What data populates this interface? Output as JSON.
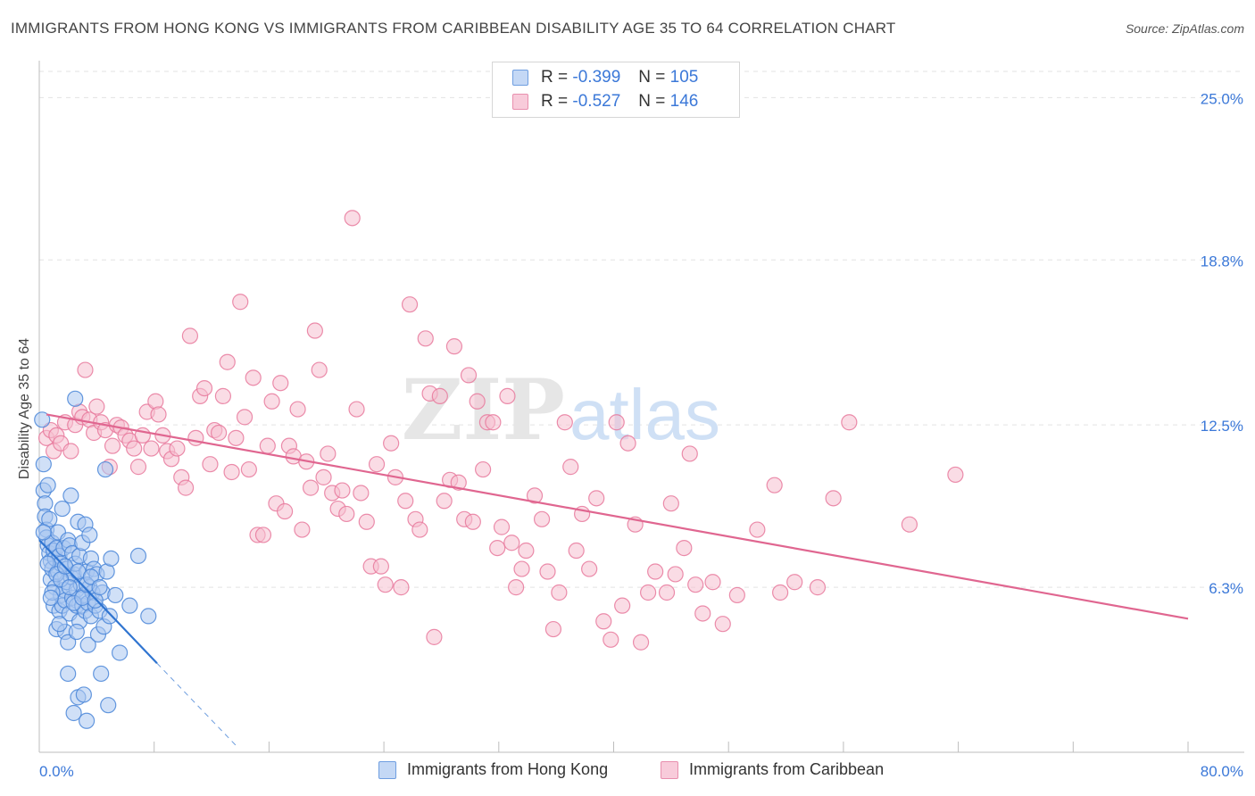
{
  "header": {
    "title": "IMMIGRANTS FROM HONG KONG VS IMMIGRANTS FROM CARIBBEAN DISABILITY AGE 35 TO 64 CORRELATION CHART",
    "source": "Source: ZipAtlas.com"
  },
  "legend": {
    "hk": {
      "r_label": "R =",
      "r_value": "-0.399",
      "n_label": "N =",
      "n_value": "105"
    },
    "car": {
      "r_label": "R =",
      "r_value": "-0.527",
      "n_label": "N =",
      "n_value": "146"
    }
  },
  "watermark": {
    "zip": "ZIP",
    "atlas": "atlas"
  },
  "colors": {
    "hk_fill": "#a9c7f1",
    "hk_stroke": "#4a86d8",
    "hk_line": "#2f74d0",
    "car_fill": "#f6bfd0",
    "car_stroke": "#e8799c",
    "car_line": "#e06690",
    "tick_text": "#3b78d8",
    "grid": "#e3e3e3"
  },
  "chart_data": {
    "type": "scatter",
    "title": "IMMIGRANTS FROM HONG KONG VS IMMIGRANTS FROM CARIBBEAN DISABILITY AGE 35 TO 64 CORRELATION CHART",
    "xlabel": "",
    "ylabel": "Disability Age 35 to 64",
    "xlim": [
      0,
      80
    ],
    "ylim": [
      0,
      26
    ],
    "x_tick_labels": [
      "0.0%",
      "80.0%"
    ],
    "y_ticks": [
      6.3,
      12.5,
      18.8,
      25.0
    ],
    "y_tick_labels": [
      "6.3%",
      "12.5%",
      "18.8%",
      "25.0%"
    ],
    "grid": true,
    "legend_placement": "top-center",
    "series": [
      {
        "name": "Immigrants from Hong Kong",
        "color": "#4a86d8",
        "trend": {
          "x": [
            0.0,
            8.2
          ],
          "y": [
            8.1,
            3.4
          ],
          "dashed_extension": {
            "x": [
              8.2,
              13.8
            ],
            "y": [
              3.4,
              0.2
            ]
          }
        },
        "points": [
          [
            0.2,
            12.7
          ],
          [
            0.3,
            11.0
          ],
          [
            0.3,
            10.0
          ],
          [
            0.4,
            9.5
          ],
          [
            0.4,
            9.0
          ],
          [
            0.5,
            8.5
          ],
          [
            0.5,
            8.2
          ],
          [
            0.6,
            7.9
          ],
          [
            0.6,
            10.2
          ],
          [
            0.7,
            8.9
          ],
          [
            0.7,
            7.6
          ],
          [
            0.8,
            7.3
          ],
          [
            0.8,
            6.6
          ],
          [
            0.9,
            7.0
          ],
          [
            0.9,
            8.0
          ],
          [
            1.0,
            7.7
          ],
          [
            1.0,
            5.6
          ],
          [
            1.1,
            7.4
          ],
          [
            1.1,
            6.3
          ],
          [
            1.2,
            7.8
          ],
          [
            1.2,
            4.7
          ],
          [
            1.3,
            6.9
          ],
          [
            1.3,
            8.4
          ],
          [
            1.4,
            5.4
          ],
          [
            1.4,
            7.5
          ],
          [
            1.5,
            6.0
          ],
          [
            1.5,
            7.2
          ],
          [
            1.6,
            5.6
          ],
          [
            1.6,
            9.3
          ],
          [
            1.7,
            7.8
          ],
          [
            1.7,
            6.2
          ],
          [
            1.8,
            5.8
          ],
          [
            1.8,
            4.6
          ],
          [
            1.9,
            7.0
          ],
          [
            1.9,
            6.5
          ],
          [
            2.0,
            8.1
          ],
          [
            2.0,
            3.0
          ],
          [
            2.1,
            7.9
          ],
          [
            2.1,
            5.3
          ],
          [
            2.2,
            9.8
          ],
          [
            2.2,
            6.7
          ],
          [
            2.3,
            7.6
          ],
          [
            2.3,
            5.9
          ],
          [
            2.4,
            6.8
          ],
          [
            2.4,
            1.5
          ],
          [
            2.5,
            7.2
          ],
          [
            2.5,
            13.5
          ],
          [
            2.6,
            5.6
          ],
          [
            2.6,
            6.2
          ],
          [
            2.7,
            2.1
          ],
          [
            2.7,
            8.8
          ],
          [
            2.8,
            5.0
          ],
          [
            2.8,
            7.5
          ],
          [
            2.9,
            6.4
          ],
          [
            3.0,
            5.6
          ],
          [
            3.0,
            8.0
          ],
          [
            3.1,
            2.2
          ],
          [
            3.1,
            6.0
          ],
          [
            3.2,
            5.4
          ],
          [
            3.2,
            8.7
          ],
          [
            3.3,
            1.2
          ],
          [
            3.3,
            6.9
          ],
          [
            3.4,
            5.7
          ],
          [
            3.4,
            4.1
          ],
          [
            3.5,
            6.3
          ],
          [
            3.5,
            8.3
          ],
          [
            3.6,
            7.4
          ],
          [
            3.6,
            5.2
          ],
          [
            3.7,
            6.1
          ],
          [
            3.8,
            7.0
          ],
          [
            3.9,
            5.6
          ],
          [
            4.0,
            6.8
          ],
          [
            4.1,
            4.5
          ],
          [
            4.2,
            5.4
          ],
          [
            4.3,
            3.0
          ],
          [
            4.4,
            6.1
          ],
          [
            4.5,
            4.8
          ],
          [
            4.6,
            10.8
          ],
          [
            4.7,
            6.9
          ],
          [
            4.8,
            1.8
          ],
          [
            4.9,
            5.2
          ],
          [
            5.0,
            7.4
          ],
          [
            5.3,
            6.0
          ],
          [
            5.6,
            3.8
          ],
          [
            6.3,
            5.6
          ],
          [
            6.9,
            7.5
          ],
          [
            7.6,
            5.2
          ],
          [
            0.3,
            8.4
          ],
          [
            0.6,
            7.2
          ],
          [
            0.9,
            6.1
          ],
          [
            1.2,
            6.8
          ],
          [
            1.5,
            6.6
          ],
          [
            1.8,
            7.1
          ],
          [
            2.1,
            6.3
          ],
          [
            2.4,
            5.7
          ],
          [
            2.7,
            6.9
          ],
          [
            3.0,
            5.9
          ],
          [
            3.3,
            6.4
          ],
          [
            3.6,
            6.7
          ],
          [
            3.9,
            5.8
          ],
          [
            4.2,
            6.3
          ],
          [
            0.8,
            5.9
          ],
          [
            1.4,
            4.9
          ],
          [
            2.0,
            4.2
          ],
          [
            2.6,
            4.6
          ]
        ]
      },
      {
        "name": "Immigrants from Caribbean",
        "color": "#e8799c",
        "trend": {
          "x": [
            0.5,
            80.0
          ],
          "y": [
            12.9,
            5.1
          ]
        },
        "points": [
          [
            0.5,
            12.0
          ],
          [
            0.8,
            12.3
          ],
          [
            1.0,
            11.5
          ],
          [
            1.2,
            12.1
          ],
          [
            1.5,
            11.8
          ],
          [
            1.8,
            12.6
          ],
          [
            2.2,
            11.5
          ],
          [
            2.5,
            12.5
          ],
          [
            2.8,
            13.0
          ],
          [
            3.0,
            12.8
          ],
          [
            3.2,
            14.6
          ],
          [
            3.5,
            12.7
          ],
          [
            3.8,
            12.2
          ],
          [
            4.0,
            13.2
          ],
          [
            4.3,
            12.6
          ],
          [
            4.6,
            12.3
          ],
          [
            4.9,
            10.9
          ],
          [
            5.1,
            11.7
          ],
          [
            5.4,
            12.5
          ],
          [
            5.7,
            12.4
          ],
          [
            6.0,
            12.1
          ],
          [
            6.3,
            11.9
          ],
          [
            6.6,
            11.6
          ],
          [
            6.9,
            10.9
          ],
          [
            7.2,
            12.1
          ],
          [
            7.5,
            13.0
          ],
          [
            7.8,
            11.6
          ],
          [
            8.1,
            13.4
          ],
          [
            8.3,
            12.9
          ],
          [
            8.6,
            12.1
          ],
          [
            8.9,
            11.5
          ],
          [
            9.2,
            11.2
          ],
          [
            9.6,
            11.6
          ],
          [
            9.9,
            10.5
          ],
          [
            10.2,
            10.1
          ],
          [
            10.5,
            15.9
          ],
          [
            10.9,
            12.0
          ],
          [
            11.2,
            13.6
          ],
          [
            11.5,
            13.9
          ],
          [
            11.9,
            11.0
          ],
          [
            12.2,
            12.3
          ],
          [
            12.5,
            12.2
          ],
          [
            12.8,
            13.6
          ],
          [
            13.1,
            14.9
          ],
          [
            13.4,
            10.7
          ],
          [
            13.7,
            12.0
          ],
          [
            14.0,
            17.2
          ],
          [
            14.3,
            12.8
          ],
          [
            14.6,
            10.8
          ],
          [
            14.9,
            14.3
          ],
          [
            15.2,
            8.3
          ],
          [
            15.6,
            8.3
          ],
          [
            15.9,
            11.7
          ],
          [
            16.2,
            13.4
          ],
          [
            16.5,
            9.5
          ],
          [
            16.8,
            14.1
          ],
          [
            17.1,
            9.2
          ],
          [
            17.4,
            11.7
          ],
          [
            17.7,
            11.3
          ],
          [
            18.0,
            13.1
          ],
          [
            18.3,
            8.5
          ],
          [
            18.6,
            11.1
          ],
          [
            18.9,
            10.1
          ],
          [
            19.2,
            16.1
          ],
          [
            19.5,
            14.6
          ],
          [
            19.8,
            10.5
          ],
          [
            20.1,
            11.4
          ],
          [
            20.4,
            9.9
          ],
          [
            20.8,
            9.3
          ],
          [
            21.1,
            10.0
          ],
          [
            21.4,
            9.1
          ],
          [
            21.8,
            20.4
          ],
          [
            22.1,
            13.1
          ],
          [
            22.4,
            9.9
          ],
          [
            22.8,
            8.8
          ],
          [
            23.1,
            7.1
          ],
          [
            23.5,
            11.0
          ],
          [
            23.8,
            7.1
          ],
          [
            24.1,
            6.4
          ],
          [
            24.5,
            11.8
          ],
          [
            24.8,
            10.5
          ],
          [
            25.2,
            6.3
          ],
          [
            25.5,
            9.6
          ],
          [
            25.8,
            17.1
          ],
          [
            26.2,
            8.9
          ],
          [
            26.5,
            8.5
          ],
          [
            26.9,
            15.8
          ],
          [
            27.2,
            13.7
          ],
          [
            27.5,
            4.4
          ],
          [
            27.9,
            13.6
          ],
          [
            28.2,
            9.6
          ],
          [
            28.6,
            10.4
          ],
          [
            28.9,
            15.5
          ],
          [
            29.2,
            10.3
          ],
          [
            29.6,
            8.9
          ],
          [
            29.9,
            14.4
          ],
          [
            30.2,
            8.8
          ],
          [
            30.5,
            13.4
          ],
          [
            30.9,
            10.8
          ],
          [
            31.2,
            12.6
          ],
          [
            31.6,
            12.6
          ],
          [
            31.9,
            7.8
          ],
          [
            32.2,
            8.6
          ],
          [
            32.6,
            13.6
          ],
          [
            32.9,
            8.0
          ],
          [
            33.2,
            6.3
          ],
          [
            33.6,
            7.0
          ],
          [
            33.9,
            7.7
          ],
          [
            34.5,
            9.8
          ],
          [
            35.0,
            8.9
          ],
          [
            35.4,
            6.9
          ],
          [
            35.8,
            4.7
          ],
          [
            36.2,
            6.1
          ],
          [
            36.6,
            12.6
          ],
          [
            37.0,
            10.9
          ],
          [
            37.4,
            7.7
          ],
          [
            37.8,
            9.1
          ],
          [
            38.3,
            7.0
          ],
          [
            38.8,
            9.7
          ],
          [
            39.3,
            5.0
          ],
          [
            39.8,
            4.3
          ],
          [
            40.2,
            12.6
          ],
          [
            40.6,
            5.6
          ],
          [
            41.0,
            11.8
          ],
          [
            41.5,
            8.7
          ],
          [
            41.9,
            4.2
          ],
          [
            42.4,
            6.1
          ],
          [
            42.9,
            6.9
          ],
          [
            43.7,
            6.1
          ],
          [
            44.0,
            9.5
          ],
          [
            44.3,
            6.8
          ],
          [
            44.9,
            7.8
          ],
          [
            45.3,
            11.4
          ],
          [
            45.7,
            6.4
          ],
          [
            46.2,
            5.3
          ],
          [
            46.9,
            6.5
          ],
          [
            47.6,
            4.9
          ],
          [
            48.6,
            6.0
          ],
          [
            50.0,
            8.5
          ],
          [
            51.2,
            10.2
          ],
          [
            51.6,
            6.1
          ],
          [
            52.6,
            6.5
          ],
          [
            54.2,
            6.3
          ],
          [
            55.3,
            9.7
          ],
          [
            56.4,
            12.6
          ],
          [
            60.6,
            8.7
          ],
          [
            63.8,
            10.6
          ]
        ]
      }
    ]
  },
  "bottom_legend": {
    "hk_label": "Immigrants from Hong Kong",
    "car_label": "Immigrants from Caribbean"
  }
}
